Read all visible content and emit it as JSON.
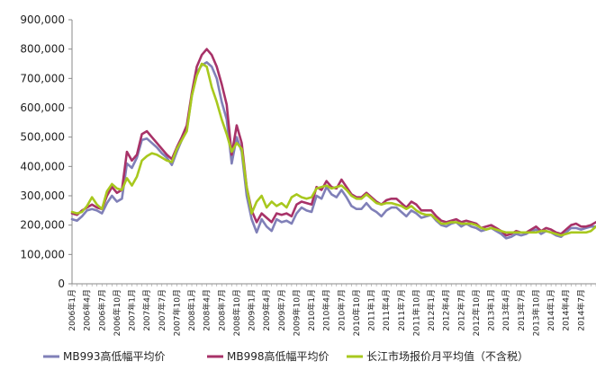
{
  "chart_data": {
    "type": "line",
    "title": "",
    "xlabel": "",
    "ylabel": "",
    "ylim": [
      0,
      900000
    ],
    "y_ticks": [
      "0",
      "100,000",
      "200,000",
      "300,000",
      "400,000",
      "500,000",
      "600,000",
      "700,000",
      "800,000",
      "900,000"
    ],
    "x_tick_labels": [
      "2006年1月",
      "2006年4月",
      "2006年7月",
      "2006年10月",
      "2007年1月",
      "2007年4月",
      "2007年7月",
      "2007年10月",
      "2008年1月",
      "2008年4月",
      "2008年7月",
      "2008年10月",
      "2009年1月",
      "2009年4月",
      "2009年7月",
      "2009年10月",
      "2010年1月",
      "2010年4月",
      "2010年7月",
      "2010年10月",
      "2011年1月",
      "2011年4月",
      "2011年7月",
      "2011年10月",
      "2012年1月",
      "2012年4月",
      "2012年7月",
      "2012年10月",
      "2013年1月",
      "2013年4月",
      "2013年7月",
      "2013年10月",
      "2014年1月",
      "2014年4月",
      "2014年7月"
    ],
    "x_start": "2006-01",
    "legend_position": "bottom",
    "grid": false,
    "series": [
      {
        "name": "MB993高低幅平均价",
        "color": "#8080b8",
        "values": [
          220000,
          215000,
          230000,
          250000,
          255000,
          250000,
          240000,
          275000,
          300000,
          280000,
          290000,
          410000,
          395000,
          430000,
          490000,
          495000,
          480000,
          465000,
          445000,
          430000,
          405000,
          450000,
          490000,
          525000,
          640000,
          720000,
          745000,
          755000,
          740000,
          700000,
          620000,
          560000,
          410000,
          500000,
          450000,
          300000,
          220000,
          175000,
          220000,
          195000,
          180000,
          220000,
          210000,
          215000,
          205000,
          240000,
          260000,
          250000,
          245000,
          300000,
          290000,
          330000,
          305000,
          295000,
          320000,
          295000,
          265000,
          255000,
          255000,
          275000,
          255000,
          245000,
          230000,
          250000,
          260000,
          260000,
          245000,
          230000,
          250000,
          240000,
          225000,
          230000,
          235000,
          215000,
          200000,
          195000,
          205000,
          210000,
          195000,
          205000,
          195000,
          190000,
          180000,
          185000,
          190000,
          180000,
          170000,
          155000,
          160000,
          170000,
          165000,
          170000,
          180000,
          185000,
          170000,
          180000,
          175000,
          165000,
          160000,
          175000,
          190000,
          190000,
          185000,
          190000,
          195000,
          195000
        ]
      },
      {
        "name": "MB998高低幅平均价",
        "color": "#a83268",
        "values": [
          240000,
          235000,
          250000,
          260000,
          270000,
          260000,
          255000,
          300000,
          330000,
          310000,
          320000,
          450000,
          420000,
          440000,
          510000,
          520000,
          500000,
          480000,
          460000,
          440000,
          425000,
          465000,
          500000,
          540000,
          650000,
          740000,
          780000,
          800000,
          780000,
          740000,
          680000,
          610000,
          440000,
          540000,
          480000,
          330000,
          250000,
          210000,
          240000,
          225000,
          210000,
          240000,
          235000,
          240000,
          230000,
          270000,
          280000,
          275000,
          270000,
          330000,
          320000,
          350000,
          330000,
          325000,
          355000,
          330000,
          305000,
          295000,
          295000,
          310000,
          295000,
          280000,
          270000,
          285000,
          290000,
          290000,
          275000,
          260000,
          280000,
          270000,
          250000,
          250000,
          250000,
          230000,
          215000,
          210000,
          215000,
          220000,
          210000,
          215000,
          210000,
          205000,
          190000,
          195000,
          200000,
          190000,
          180000,
          165000,
          170000,
          180000,
          175000,
          175000,
          185000,
          195000,
          180000,
          190000,
          185000,
          175000,
          170000,
          185000,
          200000,
          205000,
          195000,
          195000,
          200000,
          210000
        ]
      },
      {
        "name": "长江市场报价月平均值（不含税）",
        "color": "#a8c81e",
        "values": [
          245000,
          240000,
          245000,
          265000,
          295000,
          270000,
          255000,
          315000,
          340000,
          325000,
          320000,
          360000,
          335000,
          365000,
          420000,
          435000,
          445000,
          440000,
          430000,
          420000,
          415000,
          460000,
          490000,
          520000,
          640000,
          710000,
          750000,
          740000,
          670000,
          620000,
          560000,
          510000,
          450000,
          480000,
          460000,
          330000,
          240000,
          280000,
          300000,
          260000,
          280000,
          265000,
          275000,
          260000,
          295000,
          305000,
          295000,
          290000,
          295000,
          325000,
          330000,
          335000,
          325000,
          330000,
          335000,
          320000,
          300000,
          290000,
          290000,
          305000,
          290000,
          275000,
          270000,
          275000,
          275000,
          270000,
          265000,
          255000,
          265000,
          250000,
          240000,
          235000,
          235000,
          220000,
          205000,
          205000,
          210000,
          210000,
          205000,
          205000,
          205000,
          200000,
          190000,
          185000,
          190000,
          185000,
          180000,
          175000,
          175000,
          175000,
          175000,
          175000,
          175000,
          175000,
          180000,
          180000,
          175000,
          170000,
          165000,
          170000,
          175000,
          175000,
          175000,
          175000,
          180000,
          195000
        ]
      }
    ]
  }
}
